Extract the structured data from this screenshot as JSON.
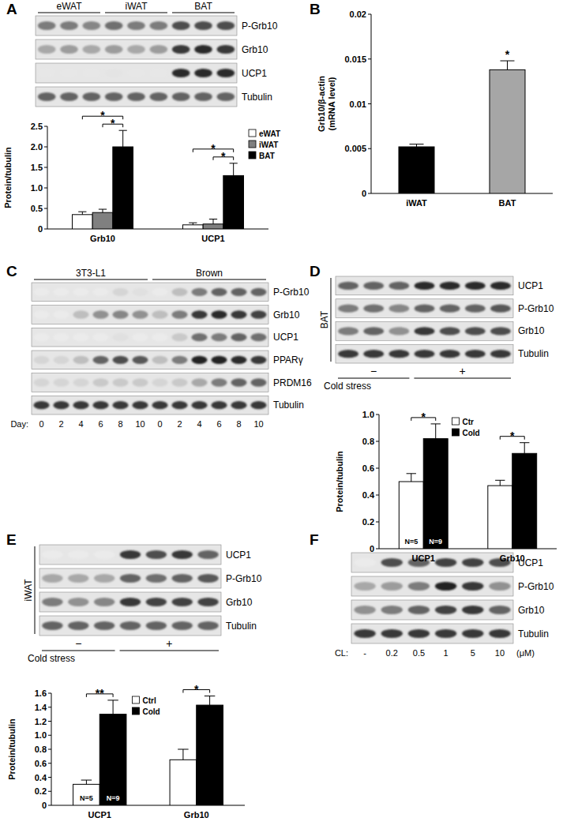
{
  "panels": [
    "A",
    "B",
    "C",
    "D",
    "E",
    "F"
  ],
  "blots": [
    {
      "groups": [
        {
          "label": "eWAT",
          "lanes": 3
        },
        {
          "label": "iWAT",
          "lanes": 3
        },
        {
          "label": "BAT",
          "lanes": 3
        }
      ],
      "group_side": "top",
      "rows": [
        {
          "label": "P-Grb10",
          "intensity": [
            0.5,
            0.5,
            0.45,
            0.55,
            0.5,
            0.5,
            0.7,
            0.7,
            0.7
          ]
        },
        {
          "label": "Grb10",
          "intensity": [
            0.3,
            0.35,
            0.3,
            0.35,
            0.3,
            0.35,
            0.8,
            0.85,
            0.8
          ]
        },
        {
          "label": "UCP1",
          "intensity": [
            0.02,
            0.02,
            0.02,
            0.03,
            0.02,
            0.02,
            0.85,
            0.85,
            0.85
          ]
        },
        {
          "label": "Tubulin",
          "intensity": [
            0.6,
            0.6,
            0.6,
            0.6,
            0.6,
            0.6,
            0.6,
            0.6,
            0.6
          ]
        }
      ]
    },
    {
      "groups": [
        {
          "label": "3T3-L1",
          "lanes": 6
        },
        {
          "label": "Brown",
          "lanes": 6
        }
      ],
      "group_side": "top",
      "lane_title": "Day:",
      "lane_labels": [
        "0",
        "2",
        "4",
        "6",
        "8",
        "10",
        "0",
        "2",
        "4",
        "6",
        "8",
        "10"
      ],
      "rows": [
        {
          "label": "P-Grb10",
          "intensity": [
            0,
            0,
            0,
            0,
            0.1,
            0.05,
            0,
            0.2,
            0.5,
            0.6,
            0.6,
            0.6
          ]
        },
        {
          "label": "Grb10",
          "intensity": [
            0,
            0,
            0.2,
            0.4,
            0.45,
            0.4,
            0.2,
            0.5,
            0.8,
            0.85,
            0.8,
            0.75
          ]
        },
        {
          "label": "UCP1",
          "intensity": [
            0,
            0,
            0,
            0,
            0.05,
            0,
            0,
            0.15,
            0.55,
            0.5,
            0.6,
            0.55
          ]
        },
        {
          "label": "PPARγ",
          "intensity": [
            0.1,
            0.1,
            0.2,
            0.6,
            0.7,
            0.65,
            0.2,
            0.5,
            0.9,
            0.9,
            0.85,
            0.8
          ]
        },
        {
          "label": "PRDM16",
          "intensity": [
            0.1,
            0.1,
            0.1,
            0.15,
            0.15,
            0.15,
            0.1,
            0.15,
            0.3,
            0.5,
            0.6,
            0.6
          ]
        },
        {
          "label": "Tubulin",
          "intensity": [
            0.8,
            0.8,
            0.8,
            0.8,
            0.8,
            0.8,
            0.8,
            0.8,
            0.8,
            0.8,
            0.8,
            0.8
          ]
        }
      ]
    },
    {
      "side_label": "BAT",
      "groups": [
        {
          "label": "−",
          "lanes": 3
        },
        {
          "label": "+",
          "lanes": 4
        }
      ],
      "group_side": "bottom",
      "lane_title": "Cold stress",
      "rows": [
        {
          "label": "UCP1",
          "intensity": [
            0.6,
            0.6,
            0.6,
            0.85,
            0.85,
            0.85,
            0.85
          ]
        },
        {
          "label": "P-Grb10",
          "intensity": [
            0.5,
            0.55,
            0.45,
            0.6,
            0.6,
            0.6,
            0.65
          ]
        },
        {
          "label": "Grb10",
          "intensity": [
            0.5,
            0.6,
            0.4,
            0.8,
            0.7,
            0.7,
            0.7
          ]
        },
        {
          "label": "Tubulin",
          "intensity": [
            0.8,
            0.8,
            0.8,
            0.8,
            0.8,
            0.8,
            0.8
          ]
        }
      ]
    },
    {
      "side_label": "iWAT",
      "groups": [
        {
          "label": "−",
          "lanes": 3
        },
        {
          "label": "+",
          "lanes": 4
        }
      ],
      "group_side": "bottom",
      "lane_title": "Cold stress",
      "rows": [
        {
          "label": "UCP1",
          "intensity": [
            0,
            0,
            0,
            0.8,
            0.7,
            0.8,
            0.6
          ]
        },
        {
          "label": "P-Grb10",
          "intensity": [
            0.3,
            0.3,
            0.3,
            0.6,
            0.55,
            0.6,
            0.65
          ]
        },
        {
          "label": "Grb10",
          "intensity": [
            0.5,
            0.4,
            0.45,
            0.8,
            0.75,
            0.75,
            0.75
          ]
        },
        {
          "label": "Tubulin",
          "intensity": [
            0.6,
            0.6,
            0.6,
            0.6,
            0.6,
            0.6,
            0.6
          ]
        }
      ]
    },
    {
      "lane_title": "CL:",
      "lane_labels": [
        "-",
        "0.2",
        "0.5",
        "1",
        "5",
        "10"
      ],
      "unit": "(μM)",
      "rows": [
        {
          "label": "UCP1",
          "intensity": [
            0,
            0.7,
            0.6,
            0.75,
            0.75,
            0.7
          ]
        },
        {
          "label": "P-Grb10",
          "intensity": [
            0.3,
            0.35,
            0.5,
            0.9,
            0.8,
            0.4
          ]
        },
        {
          "label": "Grb10",
          "intensity": [
            0.4,
            0.5,
            0.6,
            0.75,
            0.8,
            0.6
          ]
        },
        {
          "label": "Tubulin",
          "intensity": [
            0.8,
            0.8,
            0.8,
            0.8,
            0.8,
            0.8
          ]
        }
      ]
    }
  ],
  "chart_data": [
    {
      "type": "bar",
      "ylabel": "Protein/tubulin",
      "categories": [
        "Grb10",
        "UCP1"
      ],
      "series": [
        {
          "name": "eWAT",
          "color": "#ffffff",
          "values": [
            0.35,
            0.1
          ],
          "errors": [
            0.07,
            0.05
          ]
        },
        {
          "name": "iWAT",
          "color": "#808080",
          "values": [
            0.4,
            0.12
          ],
          "errors": [
            0.08,
            0.12
          ]
        },
        {
          "name": "BAT",
          "color": "#000000",
          "values": [
            2.0,
            1.3
          ],
          "errors": [
            0.4,
            0.3
          ]
        }
      ],
      "ylim": [
        0,
        2.5
      ],
      "yticks": [
        0,
        0.5,
        {
          "value": 1,
          "label": "1.0"
        },
        1.5,
        {
          "value": 2,
          "label": "2.0"
        },
        2.5
      ],
      "legend": "top-right",
      "annotations": [
        {
          "text": "*",
          "category": 0,
          "series": [
            1,
            2
          ]
        },
        {
          "text": "*",
          "category": 0,
          "series": [
            0,
            2
          ]
        },
        {
          "text": "*",
          "category": 1,
          "series": [
            1,
            2
          ]
        },
        {
          "text": "*",
          "category": 1,
          "series": [
            0,
            2
          ]
        }
      ]
    },
    {
      "type": "bar",
      "ylabel": [
        "Grb10/β-actin",
        "(mRNA level)"
      ],
      "categories": [
        "iWAT",
        "BAT"
      ],
      "values": [
        0.0052,
        0.0138
      ],
      "errors": [
        0.0003,
        0.001
      ],
      "colors": [
        "#000000",
        "#a6a6a6"
      ],
      "ylim": [
        0,
        0.02
      ],
      "yticks": [
        0,
        0.005,
        0.01,
        0.015,
        0.02
      ],
      "annotations": [
        {
          "text": "*",
          "category": 1
        }
      ]
    },
    {
      "type": "bar",
      "ylabel": "Protein/tubulin",
      "categories": [
        "UCP1",
        "Grb10"
      ],
      "series": [
        {
          "name": "Ctr",
          "color": "#ffffff",
          "values": [
            0.5,
            0.47
          ],
          "errors": [
            0.06,
            0.04
          ]
        },
        {
          "name": "Cold",
          "color": "#000000",
          "values": [
            0.82,
            0.71
          ],
          "errors": [
            0.11,
            0.08
          ]
        }
      ],
      "ylim": [
        0,
        1
      ],
      "yticks": [
        0,
        0.2,
        0.4,
        0.6,
        0.8,
        {
          "value": 1,
          "label": "1.0"
        }
      ],
      "legend": "top",
      "annotations": [
        {
          "text": "N=5",
          "category": 0,
          "series": 0
        },
        {
          "text": "N=9",
          "category": 0,
          "series": 1
        },
        {
          "text": "*",
          "category": 0,
          "series": [
            0,
            1
          ]
        },
        {
          "text": "*",
          "category": 1,
          "series": [
            0,
            1
          ]
        }
      ]
    },
    {
      "type": "bar",
      "ylabel": "Protein/tubulin",
      "categories": [
        "UCP1",
        "Grb10"
      ],
      "series": [
        {
          "name": "Ctrl",
          "color": "#ffffff",
          "values": [
            0.3,
            0.65
          ],
          "errors": [
            0.06,
            0.15
          ]
        },
        {
          "name": "Cold",
          "color": "#000000",
          "values": [
            1.3,
            1.43
          ],
          "errors": [
            0.2,
            0.13
          ]
        }
      ],
      "ylim": [
        0,
        1.6
      ],
      "yticks": [
        0,
        0.2,
        0.4,
        0.6,
        0.8,
        {
          "value": 1,
          "label": "1.0"
        },
        1.2,
        1.4,
        1.6
      ],
      "legend": "top",
      "annotations": [
        {
          "text": "N=5",
          "category": 0,
          "series": 0
        },
        {
          "text": "N=9",
          "category": 0,
          "series": 1
        },
        {
          "text": "**",
          "category": 0,
          "series": [
            0,
            1
          ]
        },
        {
          "text": "*",
          "category": 1,
          "series": [
            0,
            1
          ]
        }
      ]
    }
  ]
}
